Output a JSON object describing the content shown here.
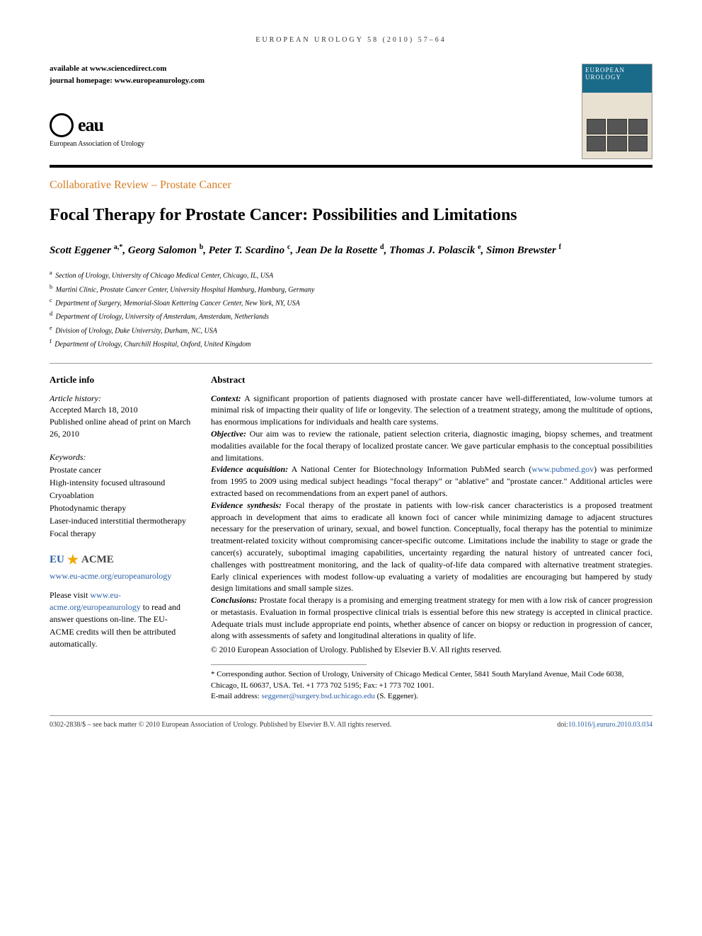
{
  "running_head": "EUROPEAN UROLOGY 58 (2010) 57–64",
  "availability": {
    "line1_prefix": "available at ",
    "line1_url": "www.sciencedirect.com",
    "line2_prefix": "journal homepage: ",
    "line2_url": "www.europeanurology.com"
  },
  "publisher": {
    "logo_text": "eau",
    "name": "European Association of Urology"
  },
  "journal_cover": {
    "title": "EUROPEAN UROLOGY"
  },
  "section_label": "Collaborative Review – Prostate Cancer",
  "title": "Focal Therapy for Prostate Cancer: Possibilities and Limitations",
  "authors_html": "Scott Eggener <sup>a,*</sup>, Georg Salomon <sup>b</sup>, Peter T. Scardino <sup>c</sup>, Jean De la Rosette <sup>d</sup>, Thomas J. Polascik <sup>e</sup>, Simon Brewster <sup>f</sup>",
  "affiliations": [
    {
      "sup": "a",
      "text": "Section of Urology, University of Chicago Medical Center, Chicago, IL, USA"
    },
    {
      "sup": "b",
      "text": "Martini Clinic, Prostate Cancer Center, University Hospital Hamburg, Hamburg, Germany"
    },
    {
      "sup": "c",
      "text": "Department of Surgery, Memorial-Sloan Kettering Cancer Center, New York, NY, USA"
    },
    {
      "sup": "d",
      "text": "Department of Urology, University of Amsterdam, Amsterdam, Netherlands"
    },
    {
      "sup": "e",
      "text": "Division of Urology, Duke University, Durham, NC, USA"
    },
    {
      "sup": "f",
      "text": "Department of Urology, Churchill Hospital, Oxford, United Kingdom"
    }
  ],
  "article_info": {
    "heading": "Article info",
    "history_label": "Article history:",
    "history_text": "Accepted March 18, 2010\nPublished online ahead of print on March 26, 2010",
    "keywords_label": "Keywords:",
    "keywords": [
      "Prostate cancer",
      "High-intensity focused ultrasound",
      "Cryoablation",
      "Photodynamic therapy",
      "Laser-induced interstitial thermotherapy",
      "Focal therapy"
    ]
  },
  "acme": {
    "eu": "EU",
    "acme": "ACME",
    "url": "www.eu-acme.org/europeanurology",
    "text_prefix": "Please visit ",
    "text_link": "www.eu-acme.org/europeanurology",
    "text_suffix": " to read and answer questions on-line. The EU-ACME credits will then be attributed automatically."
  },
  "abstract": {
    "heading": "Abstract",
    "sections": [
      {
        "label": "Context:",
        "text": "A significant proportion of patients diagnosed with prostate cancer have well-differentiated, low-volume tumors at minimal risk of impacting their quality of life or longevity. The selection of a treatment strategy, among the multitude of options, has enormous implications for individuals and health care systems."
      },
      {
        "label": "Objective:",
        "text": "Our aim was to review the rationale, patient selection criteria, diagnostic imaging, biopsy schemes, and treatment modalities available for the focal therapy of localized prostate cancer. We gave particular emphasis to the conceptual possibilities and limitations."
      },
      {
        "label": "Evidence acquisition:",
        "text": "A National Center for Biotechnology Information PubMed search (www.pubmed.gov) was performed from 1995 to 2009 using medical subject headings \"focal therapy\" or \"ablative\" and \"prostate cancer.\" Additional articles were extracted based on recommendations from an expert panel of authors.",
        "link": "www.pubmed.gov"
      },
      {
        "label": "Evidence synthesis:",
        "text": "Focal therapy of the prostate in patients with low-risk cancer characteristics is a proposed treatment approach in development that aims to eradicate all known foci of cancer while minimizing damage to adjacent structures necessary for the preservation of urinary, sexual, and bowel function. Conceptually, focal therapy has the potential to minimize treatment-related toxicity without compromising cancer-specific outcome. Limitations include the inability to stage or grade the cancer(s) accurately, suboptimal imaging capabilities, uncertainty regarding the natural history of untreated cancer foci, challenges with posttreatment monitoring, and the lack of quality-of-life data compared with alternative treatment strategies. Early clinical experiences with modest follow-up evaluating a variety of modalities are encouraging but hampered by study design limitations and small sample sizes."
      },
      {
        "label": "Conclusions:",
        "text": "Prostate focal therapy is a promising and emerging treatment strategy for men with a low risk of cancer progression or metastasis. Evaluation in formal prospective clinical trials is essential before this new strategy is accepted in clinical practice. Adequate trials must include appropriate end points, whether absence of cancer on biopsy or reduction in progression of cancer, along with assessments of safety and longitudinal alterations in quality of life."
      }
    ],
    "copyright": "© 2010 European Association of Urology. Published by Elsevier B.V. All rights reserved."
  },
  "correspondence": {
    "text": "* Corresponding author. Section of Urology, University of Chicago Medical Center, 5841 South Maryland Avenue, Mail Code 6038, Chicago, IL 60637, USA. Tel. +1 773 702 5195; Fax: +1 773 702 1001.",
    "email_label": "E-mail address: ",
    "email": "seggener@surgery.bsd.uchicago.edu",
    "email_suffix": " (S. Eggener)."
  },
  "footer": {
    "left": "0302-2838/$ – see back matter © 2010 European Association of Urology. Published by Elsevier B.V. All rights reserved.",
    "doi_prefix": "doi:",
    "doi": "10.1016/j.eururo.2010.03.034"
  },
  "colors": {
    "section_label": "#d67b1f",
    "link": "#2a5fa5",
    "acme_star": "#f0a800"
  }
}
